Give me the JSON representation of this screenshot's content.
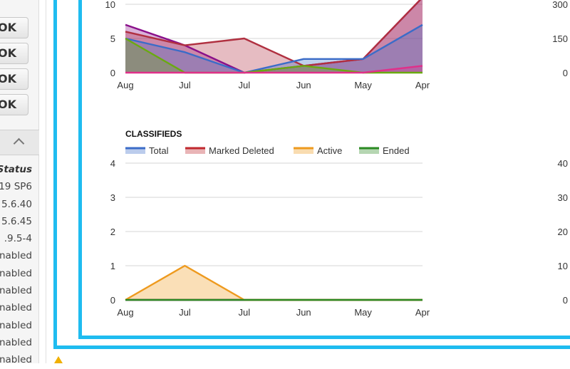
{
  "sidebar": {
    "buttons": [
      {
        "label": "OK"
      },
      {
        "label": "OK"
      },
      {
        "label": "OK"
      },
      {
        "label": "OK"
      }
    ],
    "status_header": "Status",
    "status_values": [
      "19 SP6",
      "5.6.40",
      "5.6.45",
      ".9.5-4",
      "nabled",
      "nabled",
      "nabled",
      "nabled",
      "nabled",
      "nabled",
      "nabled"
    ]
  },
  "colors": {
    "frame": "#1fbcf0",
    "total": "#3b6cc8",
    "marked_deleted": "#c0282e",
    "active": "#ee9a1e",
    "ended": "#2a8a22"
  },
  "chart_data": [
    {
      "type": "area",
      "title": "",
      "x": [
        "Aug",
        "Jul",
        "Jul",
        "Jun",
        "May",
        "Apr"
      ],
      "ylim": [
        0,
        10
      ],
      "y_ticks": [
        "0",
        "5",
        "10"
      ],
      "right_axis_ticks": [
        "0",
        "150",
        "300"
      ],
      "series": [
        {
          "values": [
            7,
            4,
            0,
            1,
            2,
            11
          ],
          "color": "#8a108a"
        },
        {
          "values": [
            6,
            4,
            5,
            1,
            2,
            11
          ],
          "color": "#b03040"
        },
        {
          "values": [
            5,
            3,
            0,
            2,
            2,
            7
          ],
          "color": "#3b6cc8"
        },
        {
          "values": [
            5,
            0,
            0,
            1,
            0,
            0
          ],
          "color": "#6aaa10"
        },
        {
          "values": [
            0,
            0,
            0,
            0,
            0,
            1
          ],
          "color": "#e0308a"
        }
      ]
    },
    {
      "type": "area",
      "title": "CLASSIFIEDS",
      "x": [
        "Aug",
        "Jul",
        "Jul",
        "Jun",
        "May",
        "Apr"
      ],
      "ylim": [
        0,
        4
      ],
      "y_ticks": [
        "0",
        "1",
        "2",
        "3",
        "4"
      ],
      "right_axis_ticks": [
        "0",
        "10",
        "20",
        "30",
        "40"
      ],
      "grid": true,
      "legend_position": "top",
      "series": [
        {
          "name": "Total",
          "values": [
            0,
            0,
            0,
            0,
            0,
            0
          ],
          "color": "#3b6cc8"
        },
        {
          "name": "Marked Deleted",
          "values": [
            0,
            0,
            0,
            0,
            0,
            0
          ],
          "color": "#c0282e"
        },
        {
          "name": "Active",
          "values": [
            0,
            1,
            0,
            0,
            0,
            0
          ],
          "color": "#ee9a1e"
        },
        {
          "name": "Ended",
          "values": [
            0,
            0,
            0,
            0,
            0,
            0
          ],
          "color": "#2a8a22"
        }
      ]
    }
  ]
}
